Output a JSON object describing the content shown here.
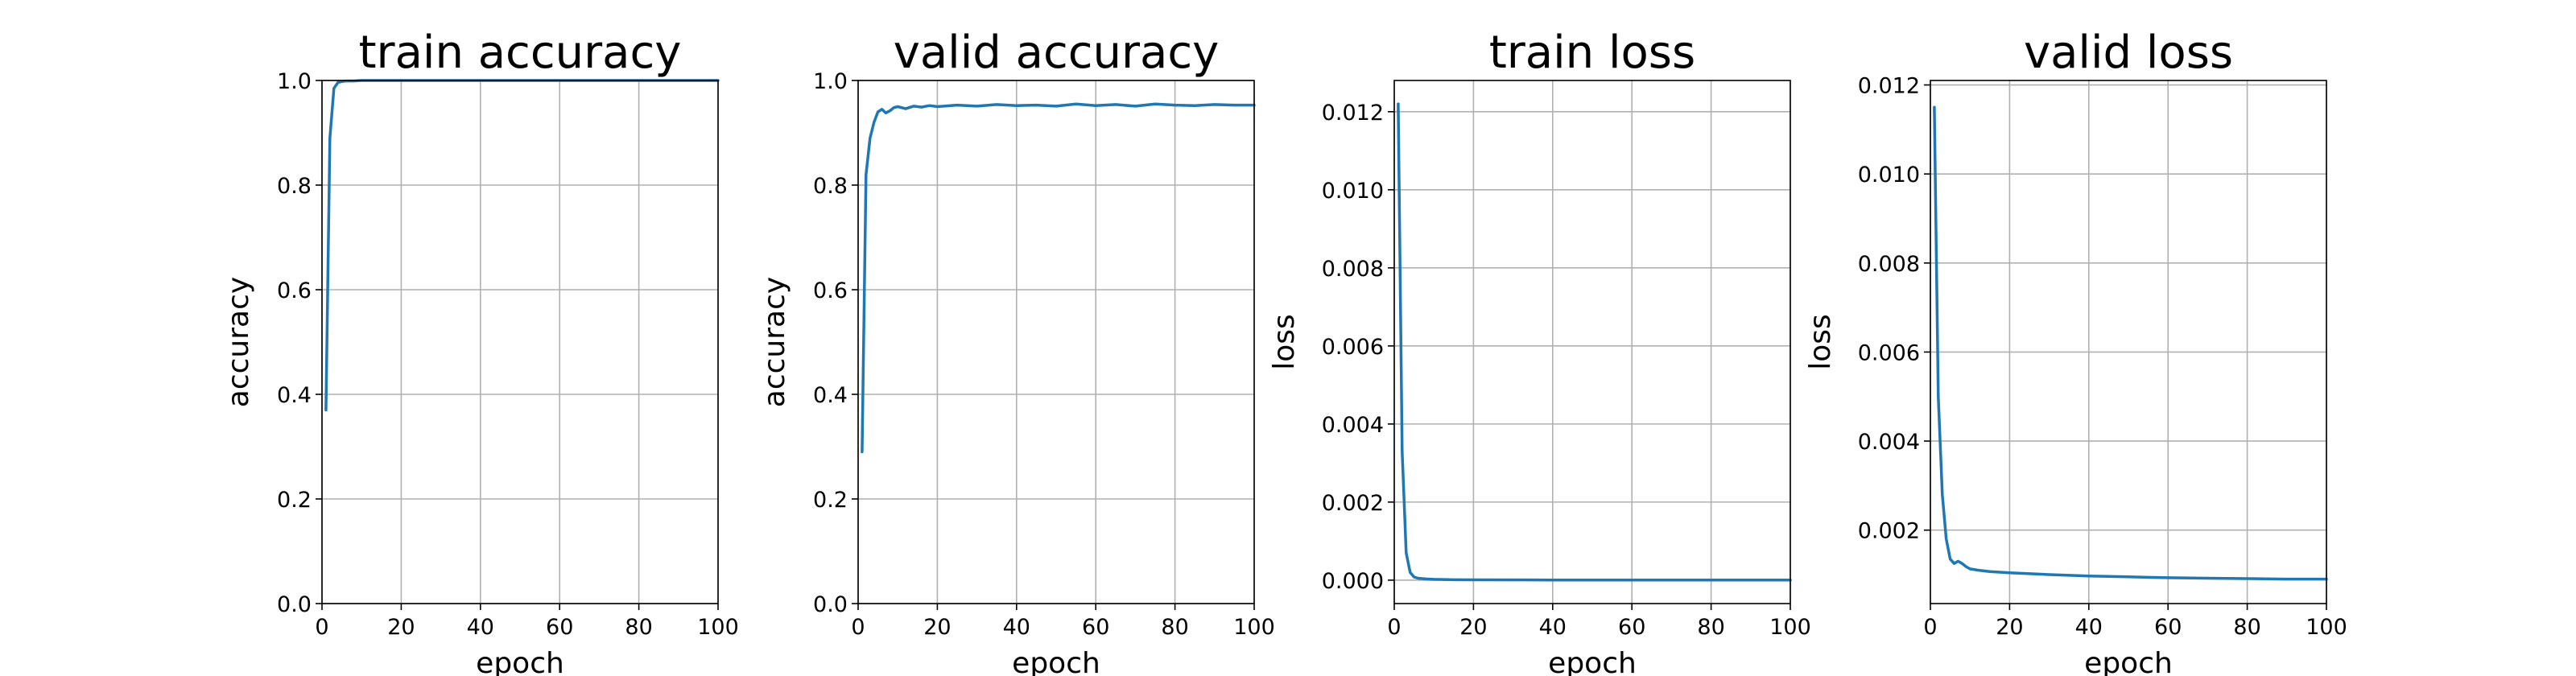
{
  "colors": {
    "series": "#1f77b4"
  },
  "chart_data": [
    {
      "type": "line",
      "title": "train accuracy",
      "xlabel": "epoch",
      "ylabel": "accuracy",
      "xlim": [
        0,
        100
      ],
      "ylim": [
        0,
        1
      ],
      "grid": true,
      "xticks": [
        0,
        20,
        40,
        60,
        80,
        100
      ],
      "xtick_labels": [
        "0",
        "20",
        "40",
        "60",
        "80",
        "100"
      ],
      "yticks": [
        0,
        0.2,
        0.4,
        0.6,
        0.8,
        1.0
      ],
      "ytick_labels": [
        "0.0",
        "0.2",
        "0.4",
        "0.6",
        "0.8",
        "1.0"
      ],
      "series": [
        {
          "x": [
            1,
            2,
            3,
            4,
            5,
            6,
            8,
            10,
            15,
            20,
            40,
            60,
            80,
            100
          ],
          "y": [
            0.37,
            0.89,
            0.985,
            0.996,
            0.998,
            0.999,
            0.999,
            1.0,
            1.0,
            1.0,
            1.0,
            1.0,
            1.0,
            1.0
          ]
        }
      ]
    },
    {
      "type": "line",
      "title": "valid accuracy",
      "xlabel": "epoch",
      "ylabel": "accuracy",
      "xlim": [
        0,
        100
      ],
      "ylim": [
        0,
        1
      ],
      "grid": true,
      "xticks": [
        0,
        20,
        40,
        60,
        80,
        100
      ],
      "xtick_labels": [
        "0",
        "20",
        "40",
        "60",
        "80",
        "100"
      ],
      "yticks": [
        0,
        0.2,
        0.4,
        0.6,
        0.8,
        1.0
      ],
      "ytick_labels": [
        "0.0",
        "0.2",
        "0.4",
        "0.6",
        "0.8",
        "1.0"
      ],
      "series": [
        {
          "x": [
            1,
            2,
            3,
            4,
            5,
            6,
            7,
            8,
            9,
            10,
            12,
            14,
            16,
            18,
            20,
            25,
            30,
            35,
            40,
            45,
            50,
            55,
            60,
            65,
            70,
            75,
            80,
            85,
            90,
            95,
            100
          ],
          "y": [
            0.29,
            0.82,
            0.89,
            0.92,
            0.94,
            0.945,
            0.938,
            0.942,
            0.948,
            0.95,
            0.946,
            0.951,
            0.949,
            0.952,
            0.95,
            0.953,
            0.951,
            0.954,
            0.952,
            0.953,
            0.951,
            0.955,
            0.952,
            0.954,
            0.951,
            0.955,
            0.953,
            0.952,
            0.954,
            0.953,
            0.953
          ]
        }
      ]
    },
    {
      "type": "line",
      "title": "train loss",
      "xlabel": "epoch",
      "ylabel": "loss",
      "xlim": [
        0,
        100
      ],
      "ylim": [
        -0.0006,
        0.0128
      ],
      "grid": true,
      "xticks": [
        0,
        20,
        40,
        60,
        80,
        100
      ],
      "xtick_labels": [
        "0",
        "20",
        "40",
        "60",
        "80",
        "100"
      ],
      "yticks": [
        0,
        0.002,
        0.004,
        0.006,
        0.008,
        0.01,
        0.012
      ],
      "ytick_labels": [
        "0.000",
        "0.002",
        "0.004",
        "0.006",
        "0.008",
        "0.010",
        "0.012"
      ],
      "series": [
        {
          "x": [
            1,
            2,
            3,
            4,
            5,
            6,
            8,
            10,
            15,
            20,
            40,
            60,
            80,
            100
          ],
          "y": [
            0.0122,
            0.0033,
            0.0007,
            0.0002,
            8e-05,
            5e-05,
            3e-05,
            2e-05,
            1e-05,
            8e-06,
            5e-06,
            4e-06,
            3e-06,
            2e-06
          ]
        }
      ]
    },
    {
      "type": "line",
      "title": "valid loss",
      "xlabel": "epoch",
      "ylabel": "loss",
      "xlim": [
        0,
        100
      ],
      "ylim": [
        0.00035,
        0.0121
      ],
      "grid": true,
      "xticks": [
        0,
        20,
        40,
        60,
        80,
        100
      ],
      "xtick_labels": [
        "0",
        "20",
        "40",
        "60",
        "80",
        "100"
      ],
      "yticks": [
        0.002,
        0.004,
        0.006,
        0.008,
        0.01,
        0.012
      ],
      "ytick_labels": [
        "0.002",
        "0.004",
        "0.006",
        "0.008",
        "0.010",
        "0.012"
      ],
      "series": [
        {
          "x": [
            1,
            2,
            3,
            4,
            5,
            6,
            7,
            8,
            9,
            10,
            12,
            15,
            20,
            30,
            40,
            50,
            60,
            70,
            80,
            90,
            100
          ],
          "y": [
            0.0115,
            0.005,
            0.0028,
            0.0018,
            0.00135,
            0.00125,
            0.0013,
            0.00125,
            0.00118,
            0.00113,
            0.0011,
            0.00107,
            0.00104,
            0.001,
            0.00097,
            0.00095,
            0.00093,
            0.00092,
            0.00091,
            0.0009,
            0.0009
          ]
        }
      ]
    }
  ]
}
